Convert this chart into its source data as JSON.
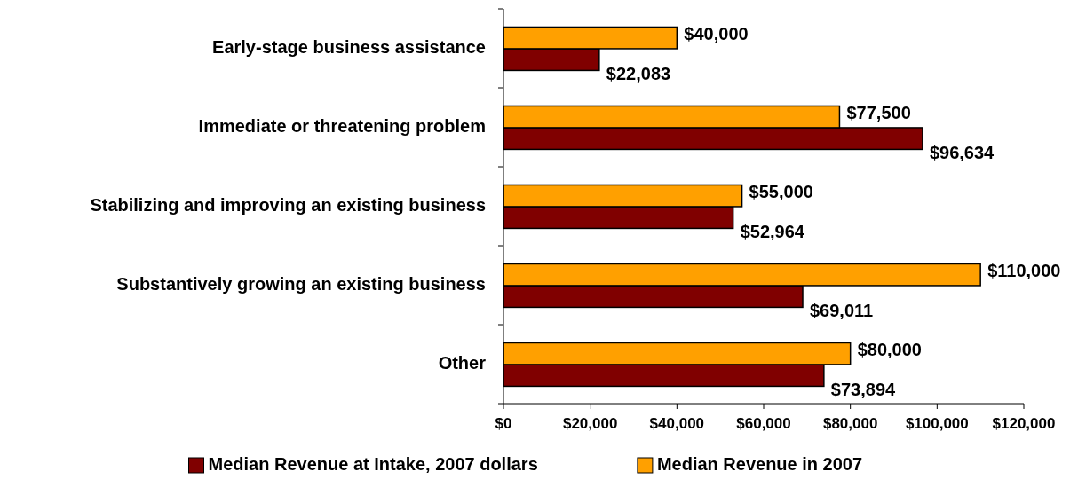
{
  "chart_data": {
    "type": "bar",
    "orientation": "horizontal",
    "categories": [
      "Early-stage business assistance",
      "Immediate or threatening problem",
      "Stabilizing and improving an existing business",
      "Substantively growing an existing business",
      "Other"
    ],
    "series": [
      {
        "name": "Median Revenue at Intake, 2007 dollars",
        "color": "#800000",
        "values": [
          22083,
          96634,
          52964,
          69011,
          73894
        ],
        "value_labels": [
          "$22,083",
          "$96,634",
          "$52,964",
          "$69,011",
          "$73,894"
        ]
      },
      {
        "name": "Median Revenue in 2007",
        "color": "#ffa000",
        "values": [
          40000,
          77500,
          55000,
          110000,
          80000
        ],
        "value_labels": [
          "$40,000",
          "$77,500",
          "$55,000",
          "$110,000",
          "$80,000"
        ]
      }
    ],
    "xlim": [
      0,
      120000
    ],
    "xticks": [
      {
        "value": 0,
        "label": "$0"
      },
      {
        "value": 20000,
        "label": "$20,000"
      },
      {
        "value": 40000,
        "label": "$40,000"
      },
      {
        "value": 60000,
        "label": "$60,000"
      },
      {
        "value": 80000,
        "label": "$80,000"
      },
      {
        "value": 100000,
        "label": "$100,000"
      },
      {
        "value": 120000,
        "label": "$120,000"
      }
    ],
    "grid": false,
    "legend": "bottom"
  }
}
